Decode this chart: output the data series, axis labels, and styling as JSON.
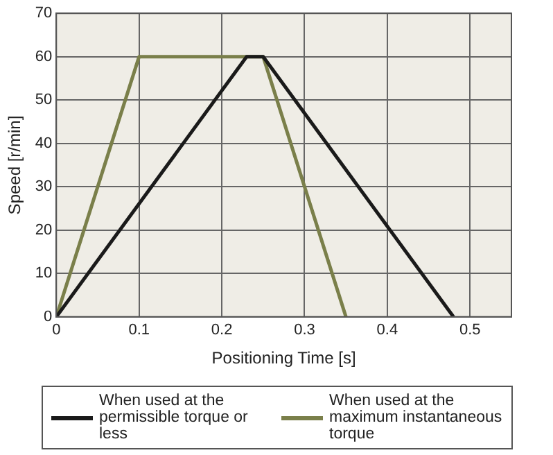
{
  "chart_data": {
    "type": "line",
    "xlabel": "Positioning Time [s]",
    "ylabel": "Speed [r/min]",
    "xlim": [
      0,
      0.55
    ],
    "xticks": [
      0,
      0.1,
      0.2,
      0.3,
      0.4,
      0.5
    ],
    "ylim": [
      0,
      70
    ],
    "yticks": [
      0,
      10,
      20,
      30,
      40,
      50,
      60,
      70
    ],
    "grid": true,
    "legend": "bottom",
    "marker": "none",
    "line_style": "solid",
    "series": [
      {
        "name": "When used at the permissible torque or less",
        "color": "#1a1a1a",
        "x": [
          0,
          0.23,
          0.25,
          0.48
        ],
        "values": [
          0,
          60,
          60,
          0
        ]
      },
      {
        "name": "When used at the maximum instantaneous torque",
        "color": "#7a7f4a",
        "x": [
          0,
          0.1,
          0.25,
          0.35
        ],
        "values": [
          0,
          60,
          60,
          0
        ]
      }
    ]
  }
}
